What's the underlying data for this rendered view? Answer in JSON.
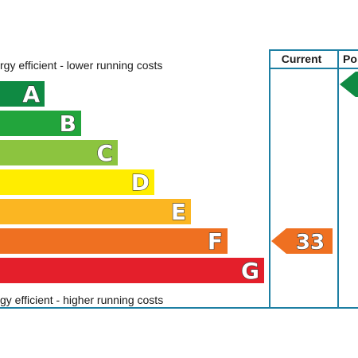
{
  "chart_data": {
    "type": "bar",
    "top_caption": "rgy efficient - lower running costs",
    "bottom_caption": "gy efficient - higher running costs",
    "columns": [
      "Current",
      "Po"
    ],
    "bands": [
      {
        "letter": "A",
        "color": "#0f8a43"
      },
      {
        "letter": "B",
        "color": "#22a53c"
      },
      {
        "letter": "C",
        "color": "#8cc43f"
      },
      {
        "letter": "D",
        "color": "#ffed00"
      },
      {
        "letter": "E",
        "color": "#fbb622"
      },
      {
        "letter": "F",
        "color": "#ef7021"
      },
      {
        "letter": "G",
        "color": "#e41f2b"
      }
    ],
    "current": {
      "value": "33",
      "band": "F",
      "color": "#ef7021"
    },
    "potential": {
      "band": "A",
      "color": "#0f8a43"
    },
    "line_color": "#1d7fa3"
  }
}
